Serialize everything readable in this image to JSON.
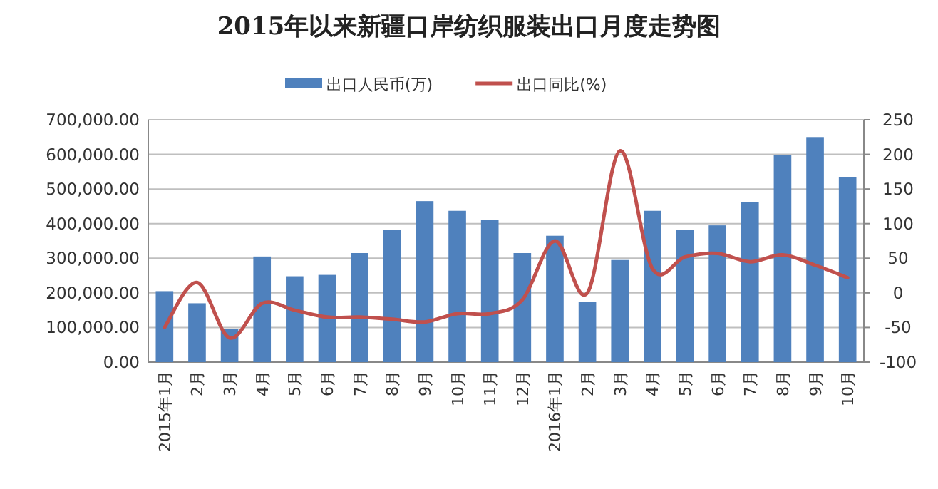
{
  "chart_data": {
    "type": "bar",
    "title": "2015年以来新疆口岸纺织服装出口月度走势图",
    "categories": [
      "2015年1月",
      "2月",
      "3月",
      "4月",
      "5月",
      "6月",
      "7月",
      "8月",
      "9月",
      "10月",
      "11月",
      "12月",
      "2016年1月",
      "2月",
      "3月",
      "4月",
      "5月",
      "6月",
      "7月",
      "8月",
      "9月",
      "10月"
    ],
    "series": [
      {
        "name": "出口人民币(万)",
        "color": "#4f81bd",
        "values": [
          205000,
          170000,
          95000,
          305000,
          248000,
          252000,
          315000,
          382000,
          465000,
          437000,
          410000,
          315000,
          365000,
          175000,
          295000,
          437000,
          382000,
          395000,
          462000,
          598000,
          650000,
          535000
        ]
      },
      {
        "name": "出口同比(%)",
        "type": "line",
        "axis": "y2",
        "color": "#c0504d",
        "values": [
          -50,
          15,
          -65,
          -15,
          -25,
          -35,
          -35,
          -38,
          -42,
          -30,
          -30,
          -10,
          75,
          0,
          205,
          35,
          52,
          57,
          45,
          55,
          40,
          22
        ]
      }
    ],
    "ylim": [
      0,
      700000
    ],
    "yticks": [
      {
        "value": 0,
        "label": "0.00"
      },
      {
        "value": 100000,
        "label": "100,000.00"
      },
      {
        "value": 200000,
        "label": "200,000.00"
      },
      {
        "value": 300000,
        "label": "300,000.00"
      },
      {
        "value": 400000,
        "label": "400,000.00"
      },
      {
        "value": 500000,
        "label": "500,000.00"
      },
      {
        "value": 600000,
        "label": "600,000.00"
      },
      {
        "value": 700000,
        "label": "700,000.00"
      }
    ],
    "y2lim": [
      -100,
      250
    ],
    "y2ticks": [
      -100,
      -50,
      0,
      50,
      100,
      150,
      200,
      250
    ],
    "grid": "y",
    "legend": "top"
  }
}
